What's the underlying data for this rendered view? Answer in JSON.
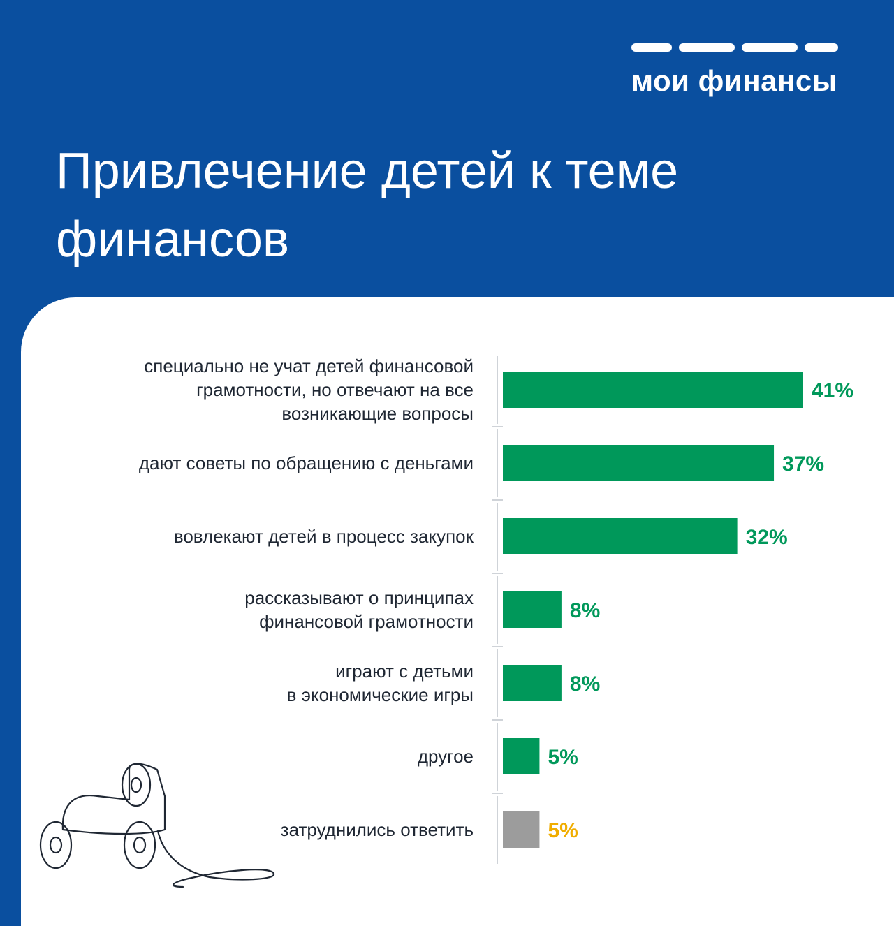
{
  "brand": {
    "logo_text": "мои финансы"
  },
  "title_lines": [
    "Привлечение детей к теме",
    "финансов"
  ],
  "colors": {
    "background": "#0a4f9f",
    "bar": "#00985a",
    "bar_other": "#9c9c9c",
    "label_accent": "#00985a",
    "label_other": "#f0ad00"
  },
  "chart_data": {
    "type": "bar",
    "orientation": "horizontal",
    "title": "",
    "categories": [
      [
        "специально не учат детей финансовой",
        "грамотности, но отвечают на все",
        "возникающие вопросы"
      ],
      [
        "дают советы по обращению с деньгами"
      ],
      [
        "вовлекают детей в процесс закупок"
      ],
      [
        "рассказывают о принципах",
        "финансовой грамотности"
      ],
      [
        "играют с детьми",
        "в экономические игры"
      ],
      [
        "другое"
      ],
      [
        "затруднились ответить"
      ]
    ],
    "values": [
      41,
      37,
      32,
      8,
      8,
      5,
      5
    ],
    "value_labels": [
      "41%",
      "37%",
      "32%",
      "8%",
      "8%",
      "5%",
      "5%"
    ],
    "highlight": [
      false,
      false,
      false,
      false,
      false,
      false,
      true
    ],
    "xlim": [
      0,
      45
    ]
  }
}
